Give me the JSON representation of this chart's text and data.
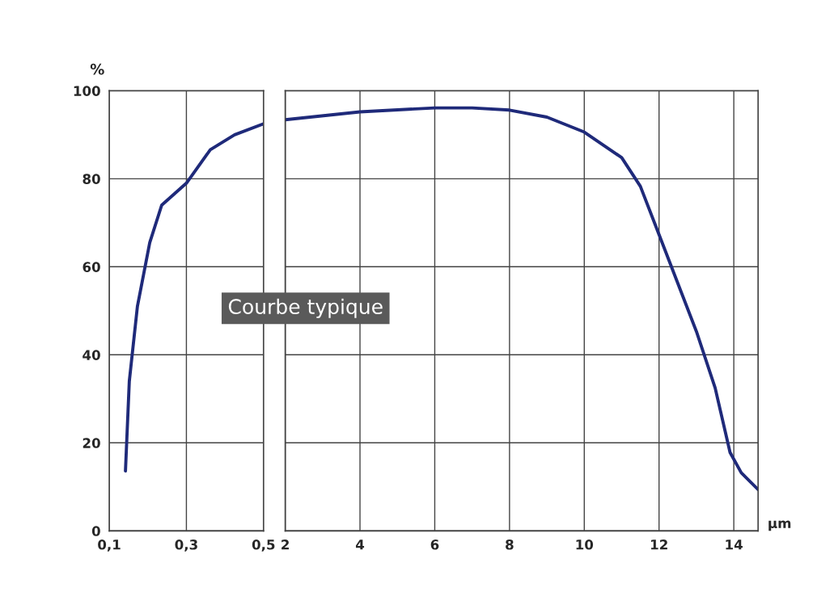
{
  "chart_data": [
    {
      "type": "line",
      "ylabel": "%",
      "x": [
        0.142,
        0.152,
        0.173,
        0.205,
        0.236,
        0.3,
        0.362,
        0.425,
        0.5
      ],
      "series": [
        {
          "color": "#1f2a7a",
          "values": [
            13.6,
            34,
            51,
            65.5,
            74,
            79,
            86.6,
            90,
            92.5
          ]
        }
      ],
      "xlim": [
        0.1,
        0.5
      ],
      "xticks": [
        {
          "value": 0.1,
          "label": "0,1"
        },
        {
          "value": 0.3,
          "label": "0,3"
        },
        {
          "value": 0.5,
          "label": "0,5"
        }
      ],
      "ylim": [
        0,
        100
      ],
      "yticks": [
        0,
        20,
        40,
        60,
        80,
        100
      ],
      "grid": true,
      "annotations": [
        "Courbe typique"
      ]
    },
    {
      "type": "line",
      "xlabel": "µm",
      "x": [
        2,
        4,
        6,
        7,
        8,
        9,
        10,
        11,
        11.5,
        12,
        13,
        13.5,
        13.9,
        14.2,
        14.65
      ],
      "series": [
        {
          "color": "#1f2a7a",
          "values": [
            93.4,
            95.2,
            96.1,
            96.1,
            95.6,
            94,
            90.6,
            84.8,
            78.3,
            67.3,
            45.3,
            32.5,
            17.8,
            13.2,
            9.4
          ]
        }
      ],
      "xlim": [
        2,
        14.65
      ],
      "xticks": [
        2,
        4,
        6,
        8,
        10,
        12,
        14
      ],
      "ylim": [
        0,
        100
      ],
      "yticks": [
        0,
        20,
        40,
        60,
        80,
        100
      ],
      "grid": true,
      "tick_labels": "x"
    }
  ]
}
